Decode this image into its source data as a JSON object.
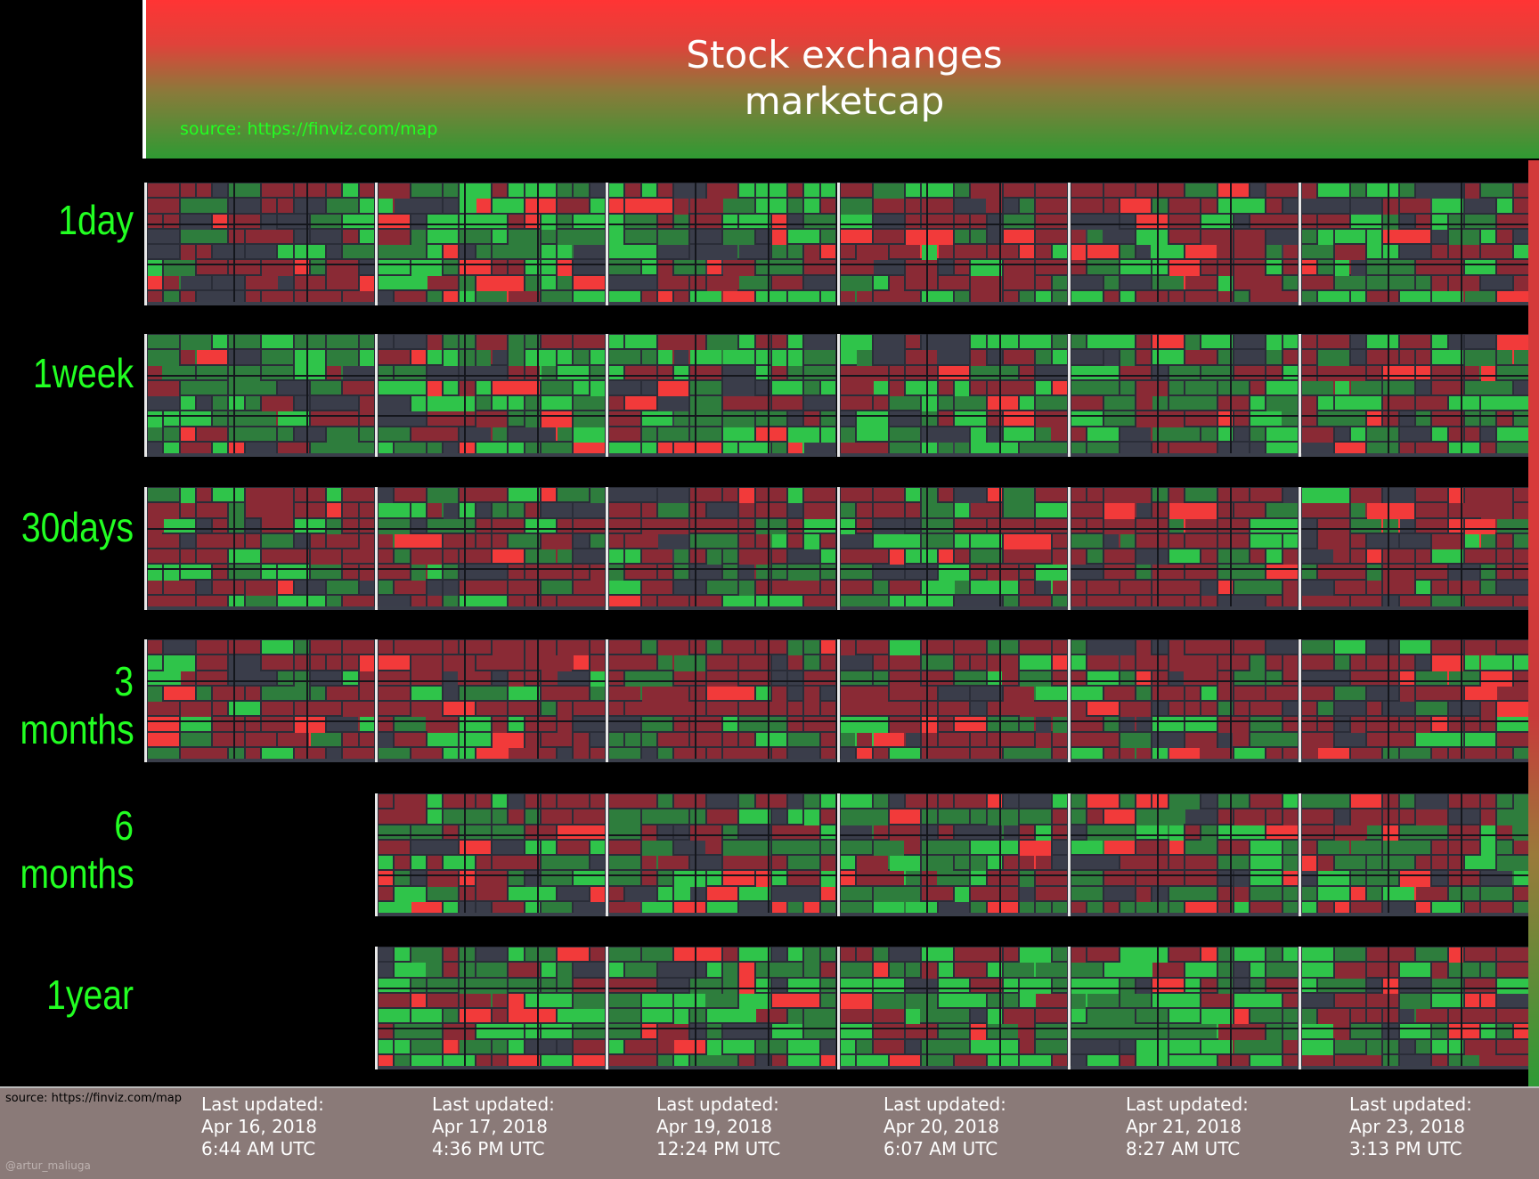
{
  "header": {
    "title": "Stock exchanges\nmarketcap",
    "source": "source: https://finviz.com/map"
  },
  "rows": [
    {
      "label": "1day",
      "tiles": 6,
      "tones": [
        "red",
        "green",
        "green",
        "red",
        "red",
        "green"
      ],
      "greenness": [
        0.35,
        0.75,
        0.55,
        0.35,
        0.3,
        0.6
      ]
    },
    {
      "label": "1week",
      "tiles": 6,
      "tones": [
        "green",
        "green",
        "green",
        "green",
        "green",
        "green"
      ],
      "greenness": [
        0.75,
        0.7,
        0.75,
        0.6,
        0.6,
        0.55
      ]
    },
    {
      "label": "30days",
      "tiles": 6,
      "tones": [
        "red",
        "red",
        "red",
        "red",
        "red",
        "red"
      ],
      "greenness": [
        0.3,
        0.3,
        0.4,
        0.45,
        0.35,
        0.3
      ]
    },
    {
      "label": "3 months",
      "tiles": 6,
      "tones": [
        "red",
        "red",
        "red",
        "red",
        "red",
        "red"
      ],
      "greenness": [
        0.25,
        0.25,
        0.3,
        0.3,
        0.25,
        0.25
      ]
    },
    {
      "label": "6 months",
      "tiles": 5,
      "tones": [
        "green",
        "green",
        "green",
        "green",
        "green"
      ],
      "greenness": [
        0.55,
        0.55,
        0.6,
        0.55,
        0.55
      ]
    },
    {
      "label": "1year",
      "tiles": 5,
      "tones": [
        "green",
        "green",
        "green",
        "green",
        "green"
      ],
      "greenness": [
        0.7,
        0.72,
        0.72,
        0.68,
        0.65
      ]
    }
  ],
  "footer": {
    "source": "source: https://finviz.com/map",
    "credit": "@artur_maliuga",
    "dates": [
      {
        "heading": "Last updated:",
        "date": "Apr 16, 2018",
        "time": "6:44 AM UTC"
      },
      {
        "heading": "Last updated:",
        "date": "Apr 17, 2018",
        "time": "4:36 PM UTC"
      },
      {
        "heading": "Last updated:",
        "date": "Apr 19, 2018",
        "time": "12:24 PM UTC"
      },
      {
        "heading": "Last updated:",
        "date": "Apr 20, 2018",
        "time": "6:07 AM UTC"
      },
      {
        "heading": "Last updated:",
        "date": "Apr 21, 2018",
        "time": "8:27 AM UTC"
      },
      {
        "heading": "Last updated:",
        "date": "Apr 23, 2018",
        "time": "3:13 PM UTC"
      }
    ]
  },
  "colors": {
    "label_green": "#22ff22",
    "strong_green": "#2fc44a",
    "mid_green": "#2e7d3d",
    "dark_neutral": "#3a3d4a",
    "mid_red": "#8a2a35",
    "strong_red": "#f23a3a"
  }
}
